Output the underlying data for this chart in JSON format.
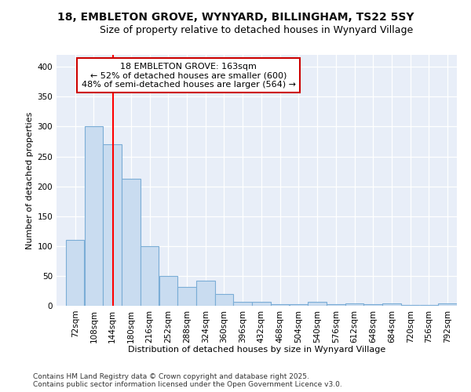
{
  "title1": "18, EMBLETON GROVE, WYNYARD, BILLINGHAM, TS22 5SY",
  "title2": "Size of property relative to detached houses in Wynyard Village",
  "xlabel": "Distribution of detached houses by size in Wynyard Village",
  "ylabel": "Number of detached properties",
  "footer1": "Contains HM Land Registry data © Crown copyright and database right 2025.",
  "footer2": "Contains public sector information licensed under the Open Government Licence v3.0.",
  "annotation_line1": "18 EMBLETON GROVE: 163sqm",
  "annotation_line2": "← 52% of detached houses are smaller (600)",
  "annotation_line3": "48% of semi-detached houses are larger (564) →",
  "bar_color": "#c9dcf0",
  "bar_edge_color": "#7badd6",
  "red_line_x": 163,
  "bin_width": 36,
  "bin_starts": [
    72,
    108,
    144,
    180,
    216,
    252,
    288,
    324,
    360,
    396,
    432,
    468,
    504,
    540,
    576,
    612,
    648,
    684,
    720,
    756,
    792
  ],
  "bar_heights": [
    110,
    300,
    270,
    213,
    100,
    50,
    32,
    42,
    20,
    7,
    7,
    3,
    2,
    6,
    2,
    4,
    3,
    4,
    1,
    1,
    4
  ],
  "ylim": [
    0,
    420
  ],
  "xlim": [
    54,
    828
  ],
  "yticks": [
    0,
    50,
    100,
    150,
    200,
    250,
    300,
    350,
    400
  ],
  "fig_background": "#ffffff",
  "ax_background": "#e8eef8",
  "grid_color": "#ffffff",
  "annotation_box_facecolor": "#ffffff",
  "annotation_box_edgecolor": "#cc0000",
  "title1_fontsize": 10,
  "title2_fontsize": 9,
  "xlabel_fontsize": 8,
  "ylabel_fontsize": 8,
  "tick_fontsize": 7.5,
  "annotation_fontsize": 8,
  "footer_fontsize": 6.5
}
